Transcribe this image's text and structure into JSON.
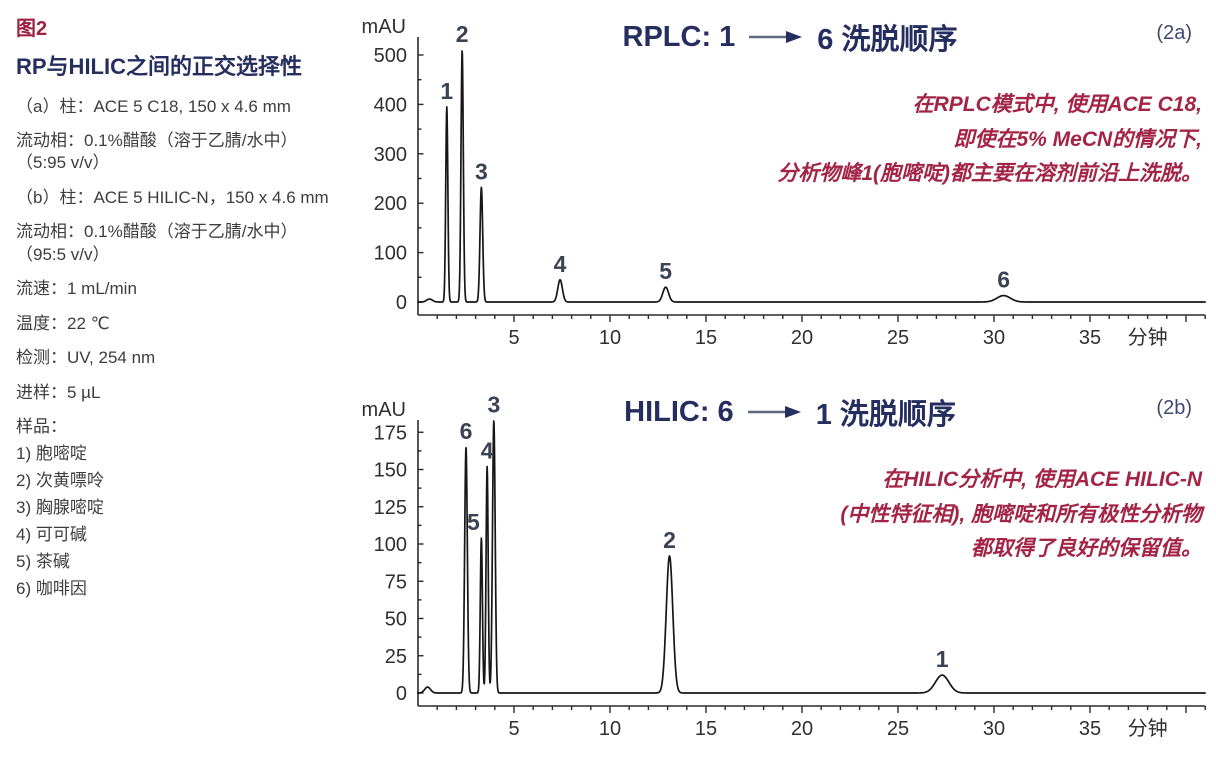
{
  "colors": {
    "maroon": "#9c2143",
    "navy": "#262e60",
    "body": "#3d3d3d",
    "red": "#a32447",
    "trace": "#161616",
    "axis": "#2b2b2b",
    "tick_label": "#303030",
    "peak_label": "#3a4254",
    "arrow_shaft": "#5f6880",
    "background": "#ffffff"
  },
  "sidebar": {
    "figure_label": "图2",
    "title": "RP与HILIC之间的正交选择性",
    "conditions": [
      "（a）柱：ACE 5 C18, 150 x 4.6 mm",
      "流动相：0.1%醋酸（溶于乙腈/水中）（5:95 v/v）",
      "（b）柱：ACE 5 HILIC-N，150 x 4.6 mm",
      "流动相：0.1%醋酸（溶于乙腈/水中）（95:5 v/v）",
      "流速：1 mL/min",
      "温度：22 ℃",
      "检测：UV, 254 nm",
      "进样：5 µL"
    ],
    "sample_header": "样品：",
    "samples": [
      "1) 胞嘧啶",
      "2) 次黄嘌呤",
      "3) 胸腺嘧啶",
      "4) 可可碱",
      "5) 茶碱",
      "6) 咖啡因"
    ]
  },
  "chart_data": [
    {
      "type": "line",
      "title_prefix": "RPLC: 1",
      "title_suffix": "6 洗脱顺序",
      "panel_tag": "(2a)",
      "annotation_lines": [
        "在RPLC模式中, 使用ACE C18,",
        "即使在5% MeCN的情况下,",
        "分析物峰1(胞嘧啶)都主要在溶剂前沿上洗脱。"
      ],
      "ylabel": "mAU",
      "xlabel": "分钟",
      "xlim": [
        0,
        41
      ],
      "ylim": [
        0,
        550
      ],
      "yticks": [
        0,
        100,
        200,
        300,
        400,
        500
      ],
      "xticks": [
        5,
        10,
        15,
        20,
        25,
        30,
        35
      ],
      "x_minor_step": 1,
      "grid": false,
      "baseline_blip": {
        "rt_min": 0.6,
        "height_mau": 6,
        "sigma_min": 0.15
      },
      "peaks": [
        {
          "label": "1",
          "rt_min": 1.5,
          "height_mau": 395,
          "sigma_min": 0.055
        },
        {
          "label": "2",
          "rt_min": 2.3,
          "height_mau": 510,
          "sigma_min": 0.06
        },
        {
          "label": "3",
          "rt_min": 3.3,
          "height_mau": 232,
          "sigma_min": 0.07
        },
        {
          "label": "4",
          "rt_min": 7.4,
          "height_mau": 45,
          "sigma_min": 0.12
        },
        {
          "label": "5",
          "rt_min": 12.9,
          "height_mau": 30,
          "sigma_min": 0.15
        },
        {
          "label": "6",
          "rt_min": 30.5,
          "height_mau": 13,
          "sigma_min": 0.35
        }
      ]
    },
    {
      "type": "line",
      "title_prefix": "HILIC: 6",
      "title_suffix": "1 洗脱顺序",
      "panel_tag": "(2b)",
      "annotation_lines": [
        "在HILIC分析中, 使用ACE HILIC-N",
        "(中性特征相), 胞嘧啶和所有极性分析物",
        "都取得了良好的保留值。"
      ],
      "ylabel": "mAU",
      "xlabel": "分钟",
      "xlim": [
        0,
        41
      ],
      "ylim": [
        0,
        185
      ],
      "yticks": [
        0,
        25,
        50,
        75,
        100,
        125,
        150,
        175
      ],
      "xticks": [
        5,
        10,
        15,
        20,
        25,
        30,
        35
      ],
      "x_minor_step": 1,
      "grid": false,
      "baseline_blip": {
        "rt_min": 0.5,
        "height_mau": 4,
        "sigma_min": 0.15
      },
      "peaks": [
        {
          "label": "6",
          "rt_min": 2.5,
          "height_mau": 165,
          "sigma_min": 0.07
        },
        {
          "label": "5",
          "rt_min": 3.3,
          "height_mau": 104,
          "sigma_min": 0.055,
          "label_dx": -8
        },
        {
          "label": "4",
          "rt_min": 3.6,
          "height_mau": 152,
          "sigma_min": 0.055
        },
        {
          "label": "3",
          "rt_min": 3.95,
          "height_mau": 183,
          "sigma_min": 0.07
        },
        {
          "label": "2",
          "rt_min": 13.1,
          "height_mau": 92,
          "sigma_min": 0.17
        },
        {
          "label": "1",
          "rt_min": 27.3,
          "height_mau": 12,
          "sigma_min": 0.35
        }
      ]
    }
  ]
}
